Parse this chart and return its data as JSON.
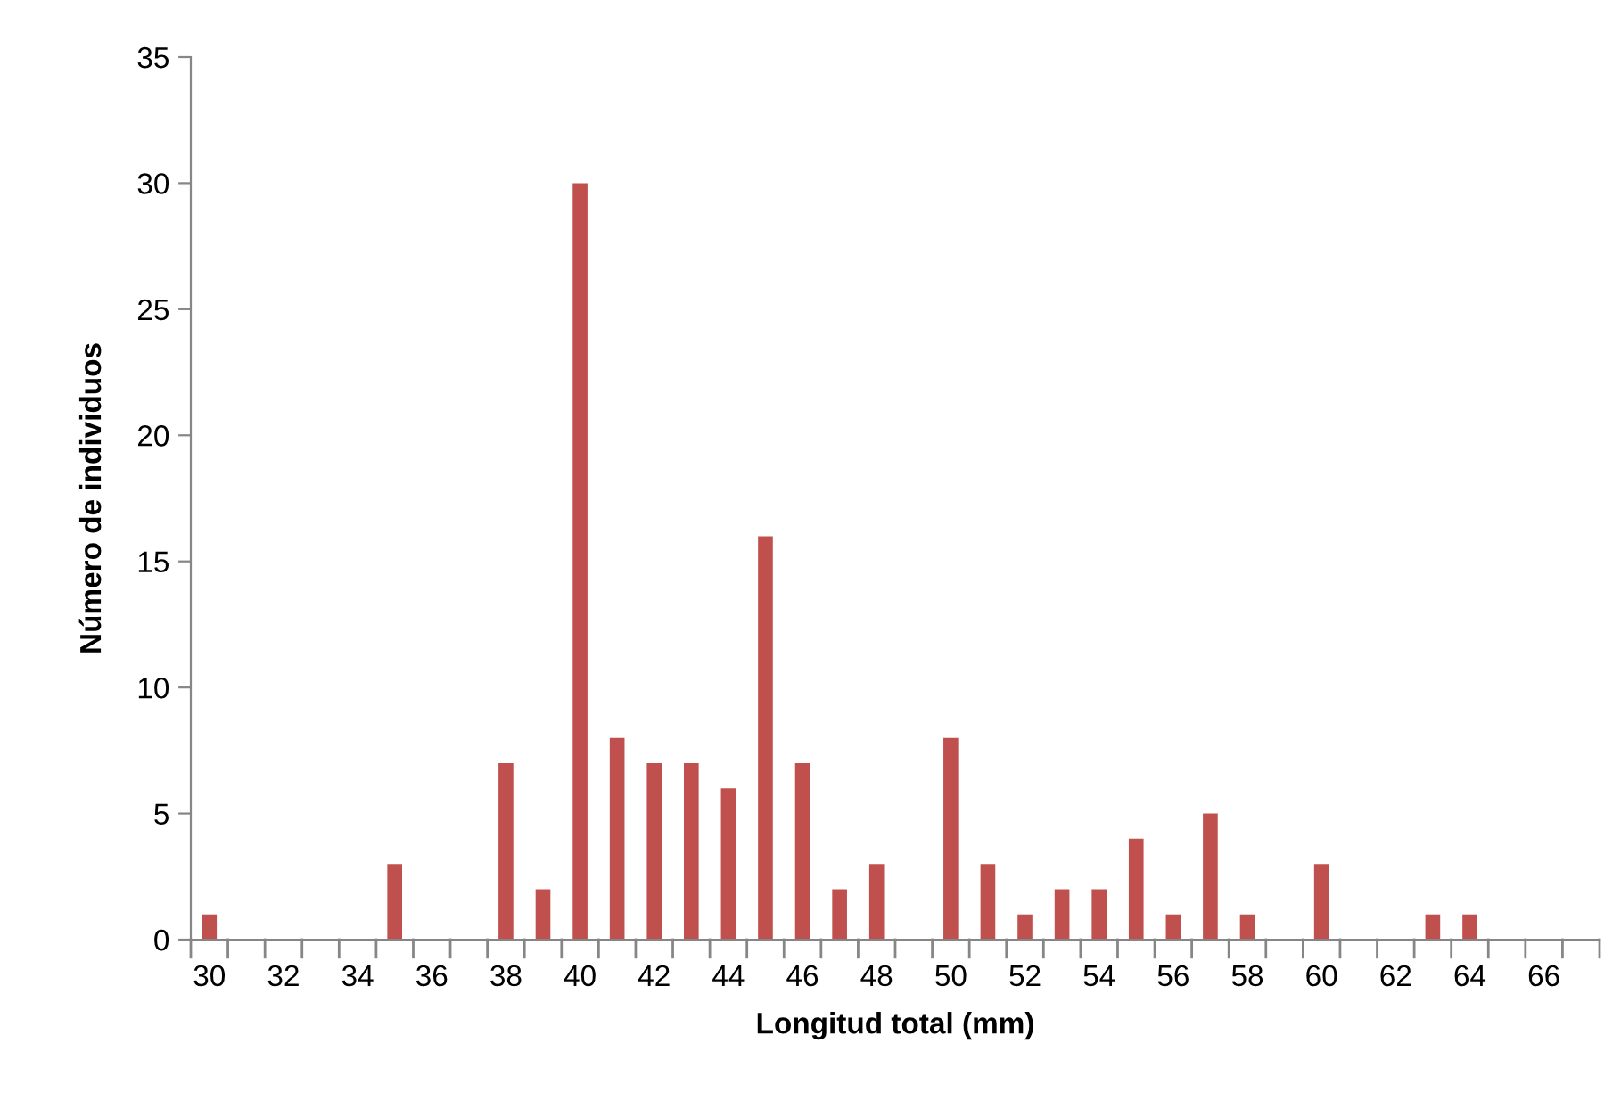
{
  "chart_data": {
    "type": "bar",
    "xlabel": "Longitud total (mm)",
    "ylabel": "Número de individuos",
    "categories": [
      "30",
      null,
      "32",
      null,
      "34",
      null,
      "36",
      null,
      "38",
      null,
      "40",
      null,
      "42",
      null,
      "44",
      null,
      "46",
      null,
      "48",
      null,
      "50",
      null,
      "52",
      null,
      "54",
      null,
      "56",
      null,
      "58",
      null,
      "60",
      null,
      "62",
      null,
      "64",
      null,
      "66",
      null
    ],
    "values": [
      1,
      0,
      0,
      0,
      0,
      3,
      0,
      0,
      7,
      2,
      30,
      8,
      7,
      7,
      6,
      16,
      7,
      2,
      3,
      0,
      8,
      3,
      1,
      2,
      2,
      4,
      1,
      5,
      1,
      0,
      3,
      0,
      0,
      1,
      1,
      0,
      0,
      0
    ],
    "color": "#c0504d",
    "ylim": [
      0,
      35
    ],
    "yticks": [
      0,
      5,
      10,
      15,
      20,
      25,
      30,
      35
    ],
    "grid": false,
    "legend": false
  }
}
